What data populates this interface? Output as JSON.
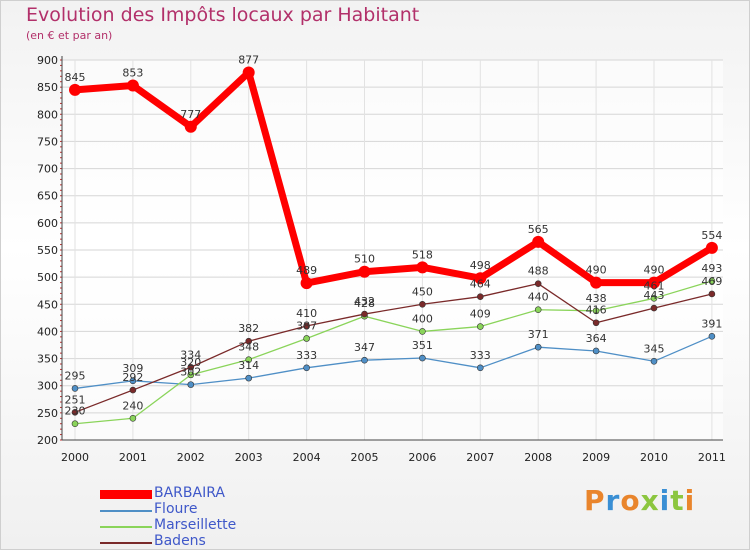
{
  "header": {
    "title": "Evolution des Impôts locaux par Habitant",
    "subtitle": "(en € et par an)"
  },
  "brand": {
    "text": "Proxiti",
    "colors": [
      "#e9852c",
      "#3a8fd4",
      "#e9852c",
      "#8cc63f",
      "#3a8fd4",
      "#8cc63f",
      "#e9852c"
    ]
  },
  "chart_data": {
    "type": "line",
    "title": "Evolution des Impôts locaux par Habitant",
    "subtitle": "(en € et par an)",
    "xlabel": "",
    "ylabel": "",
    "ylim": [
      200,
      900
    ],
    "yticks": [
      200,
      250,
      300,
      350,
      400,
      450,
      500,
      550,
      600,
      650,
      700,
      750,
      800,
      850,
      900
    ],
    "grid": true,
    "legend_position": "bottom-left",
    "categories": [
      "2000",
      "2001",
      "2002",
      "2003",
      "2004",
      "2005",
      "2006",
      "2007",
      "2008",
      "2009",
      "2010",
      "2011"
    ],
    "series": [
      {
        "name": "BARBAIRA",
        "color": "#ff0000",
        "values": [
          845,
          853,
          777,
          877,
          489,
          510,
          518,
          498,
          565,
          490,
          490,
          554
        ]
      },
      {
        "name": "Floure",
        "color": "#4f8fc6",
        "values": [
          295,
          309,
          302,
          314,
          333,
          347,
          351,
          333,
          371,
          364,
          345,
          391
        ]
      },
      {
        "name": "Marseillette",
        "color": "#8ad45a",
        "values": [
          230,
          240,
          320,
          348,
          387,
          428,
          400,
          409,
          440,
          438,
          461,
          493
        ]
      },
      {
        "name": "Badens",
        "color": "#7a2a2a",
        "values": [
          251,
          292,
          334,
          382,
          410,
          432,
          450,
          464,
          488,
          416,
          443,
          469
        ]
      }
    ]
  }
}
